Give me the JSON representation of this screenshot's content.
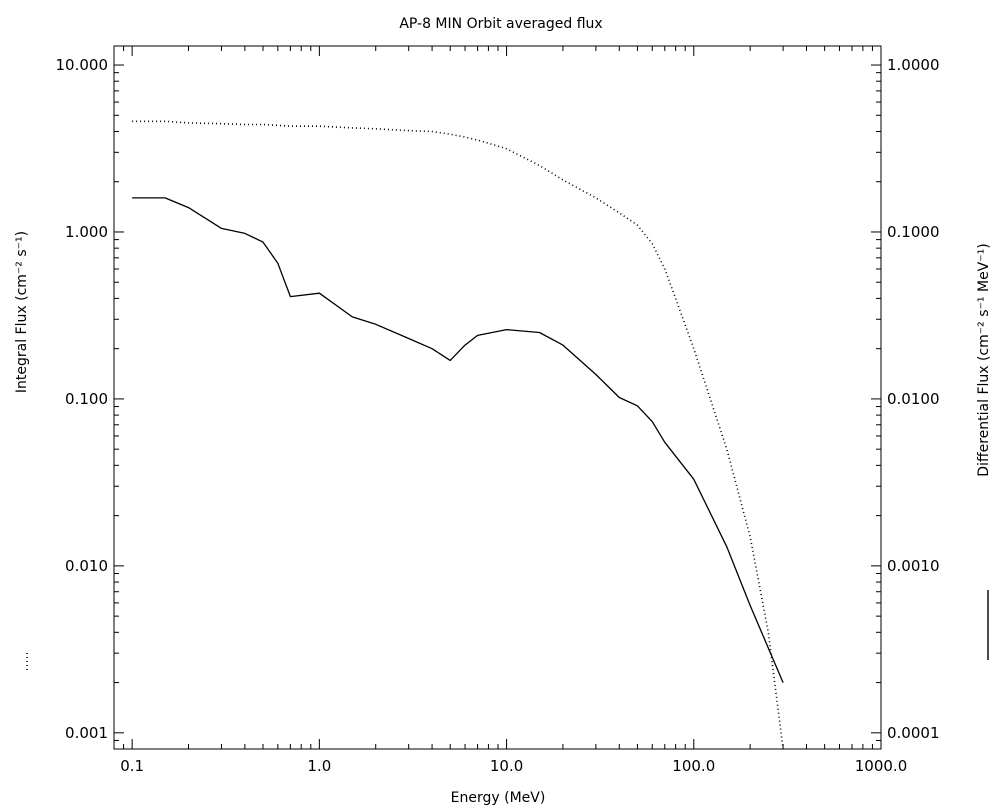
{
  "chart_data": {
    "type": "line",
    "title": "AP-8 MIN Orbit averaged flux",
    "xlabel": "Energy (MeV)",
    "ylabel_left": "Integral Flux (cm⁻² s⁻¹)",
    "ylabel_right": "Differential Flux (cm⁻² s⁻¹ MeV⁻¹)",
    "xscale": "log",
    "yscale": "log",
    "xlim": [
      0.08,
      1000
    ],
    "ylim_left": [
      0.0008,
      13
    ],
    "ylim_right": [
      8e-05,
      1.3
    ],
    "x_tick_labels": [
      "0.1",
      "1.0",
      "10.0",
      "100.0",
      "1000.0"
    ],
    "x_tick_values": [
      0.1,
      1,
      10,
      100,
      1000
    ],
    "y_left_tick_labels": [
      "10.000",
      "1.000",
      "0.100",
      "0.010",
      "0.001"
    ],
    "y_left_tick_values": [
      10,
      1,
      0.1,
      0.01,
      0.001
    ],
    "y_right_tick_labels": [
      "10.0000",
      "1.0000",
      "0.1000",
      "0.0100",
      "0.0010",
      "0.0001"
    ],
    "y_right_tick_values": [
      10,
      1,
      0.1,
      0.01,
      0.001,
      0.0001
    ],
    "grid": false,
    "series": [
      {
        "axis": "left",
        "style": "dotted",
        "x": [
          0.1,
          0.15,
          0.2,
          0.3,
          0.4,
          0.5,
          0.6,
          0.7,
          1,
          1.5,
          2,
          3,
          4,
          5,
          6,
          7,
          8,
          10,
          15,
          20,
          30,
          40,
          50,
          60,
          70,
          80,
          100,
          150,
          200,
          250,
          300
        ],
        "values": [
          4.6,
          4.6,
          4.5,
          4.45,
          4.4,
          4.4,
          4.35,
          4.3,
          4.3,
          4.2,
          4.15,
          4.05,
          4.0,
          3.85,
          3.7,
          3.55,
          3.4,
          3.15,
          2.5,
          2.05,
          1.6,
          1.3,
          1.1,
          0.85,
          0.6,
          0.4,
          0.2,
          0.05,
          0.015,
          0.004,
          0.0008
        ]
      },
      {
        "axis": "right",
        "style": "solid",
        "x": [
          0.1,
          0.15,
          0.2,
          0.3,
          0.4,
          0.5,
          0.6,
          0.7,
          1,
          1.5,
          2,
          3,
          4,
          5,
          6,
          7,
          10,
          15,
          20,
          30,
          40,
          50,
          60,
          70,
          100,
          150,
          200,
          300
        ],
        "values": [
          0.16,
          0.16,
          0.14,
          0.105,
          0.098,
          0.087,
          0.065,
          0.041,
          0.043,
          0.031,
          0.028,
          0.023,
          0.02,
          0.017,
          0.021,
          0.024,
          0.026,
          0.025,
          0.021,
          0.014,
          0.0102,
          0.0091,
          0.0073,
          0.0055,
          0.0033,
          0.0013,
          0.00058,
          0.0002
        ]
      }
    ],
    "legend": {
      "left_marker": "dotted",
      "right_marker": "solid"
    }
  }
}
